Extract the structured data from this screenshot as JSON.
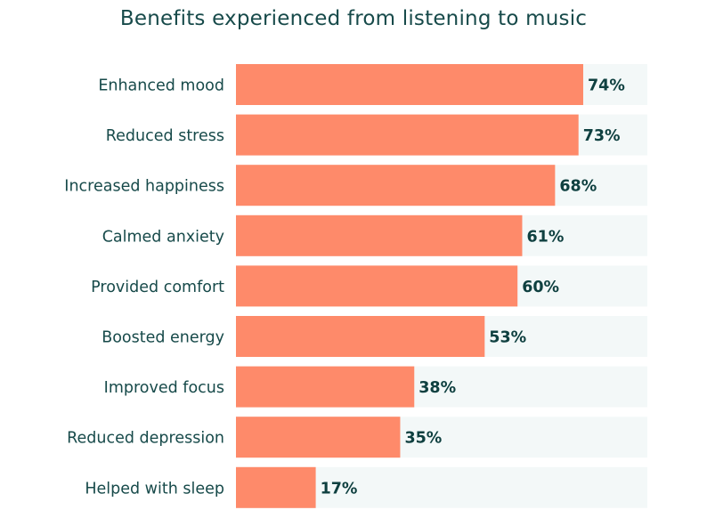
{
  "chart_data": {
    "type": "bar",
    "orientation": "horizontal",
    "title": "Benefits experienced from listening to music",
    "xlabel": "",
    "ylabel": "",
    "xlim": [
      0,
      100
    ],
    "grid": false,
    "legend": "none",
    "value_suffix": "%",
    "categories": [
      "Enhanced mood",
      "Reduced stress",
      "Increased happiness",
      "Calmed anxiety",
      "Provided comfort",
      "Boosted energy",
      "Improved focus",
      "Reduced depression",
      "Helped with sleep"
    ],
    "values": [
      74,
      73,
      68,
      61,
      60,
      53,
      38,
      35,
      17
    ],
    "data_labels": [
      "74%",
      "73%",
      "68%",
      "61%",
      "60%",
      "53%",
      "38%",
      "35%",
      "17%"
    ]
  },
  "colors": {
    "bar": "#fe8a6a",
    "track": "#f3f8f8",
    "category_text": "#174a4a",
    "value_text": "#0f4040",
    "title_text": "#174a4a"
  }
}
